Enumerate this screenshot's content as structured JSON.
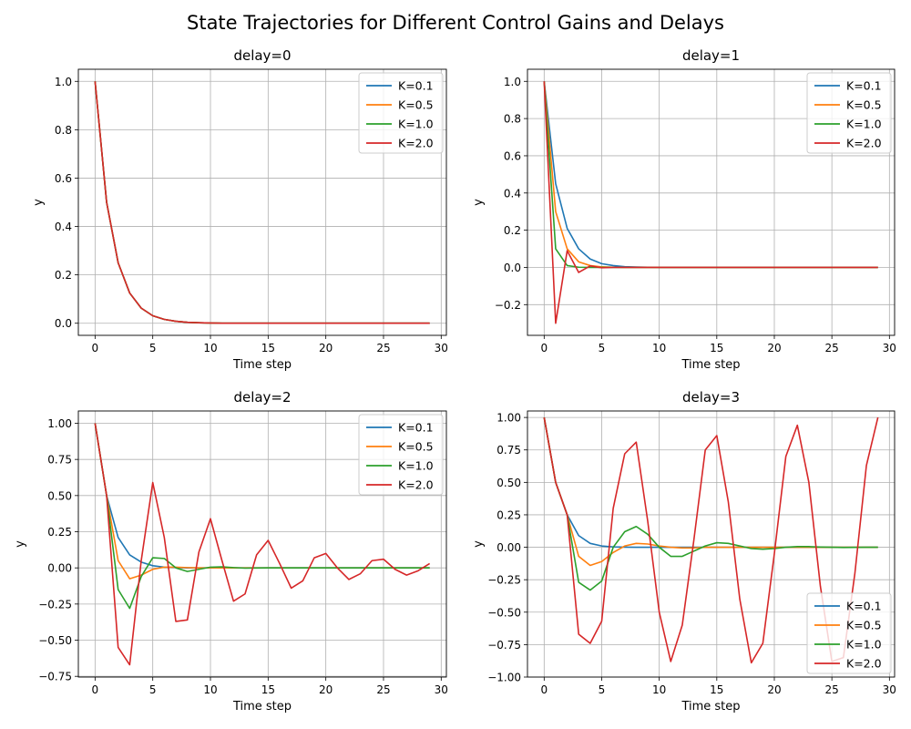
{
  "figure": {
    "title": "State Trajectories for Different Control Gains and Delays"
  },
  "chart_data": [
    {
      "type": "line",
      "title": "delay=0",
      "xlabel": "Time step",
      "ylabel": "y",
      "xlim": [
        -1.45,
        30.45
      ],
      "ylim": [
        -0.05,
        1.05
      ],
      "xticks": [
        0,
        5,
        10,
        15,
        20,
        25,
        30
      ],
      "yticks": [
        0.0,
        0.2,
        0.4,
        0.6,
        0.8,
        1.0
      ],
      "ytick_labels": [
        "0.0",
        "0.2",
        "0.4",
        "0.6",
        "0.8",
        "1.0"
      ],
      "grid": true,
      "legend_position": "top-right",
      "series": [
        {
          "name": "K=0.1",
          "color": "#1f77b4",
          "values": [
            1.0,
            0.5,
            0.25,
            0.125,
            0.0625,
            0.031,
            0.016,
            0.008,
            0.004,
            0.002,
            0.001,
            0.0,
            0.0,
            0.0,
            0.0,
            0.0,
            0.0,
            0.0,
            0.0,
            0.0,
            0.0,
            0.0,
            0.0,
            0.0,
            0.0,
            0.0,
            0.0,
            0.0,
            0.0,
            0.0
          ]
        },
        {
          "name": "K=0.5",
          "color": "#ff7f0e",
          "values": [
            1.0,
            0.5,
            0.25,
            0.125,
            0.0625,
            0.031,
            0.016,
            0.008,
            0.004,
            0.002,
            0.001,
            0.0,
            0.0,
            0.0,
            0.0,
            0.0,
            0.0,
            0.0,
            0.0,
            0.0,
            0.0,
            0.0,
            0.0,
            0.0,
            0.0,
            0.0,
            0.0,
            0.0,
            0.0,
            0.0
          ]
        },
        {
          "name": "K=1.0",
          "color": "#2ca02c",
          "values": [
            1.0,
            0.5,
            0.25,
            0.125,
            0.0625,
            0.031,
            0.016,
            0.008,
            0.004,
            0.002,
            0.001,
            0.0,
            0.0,
            0.0,
            0.0,
            0.0,
            0.0,
            0.0,
            0.0,
            0.0,
            0.0,
            0.0,
            0.0,
            0.0,
            0.0,
            0.0,
            0.0,
            0.0,
            0.0,
            0.0
          ]
        },
        {
          "name": "K=2.0",
          "color": "#d62728",
          "values": [
            1.0,
            0.5,
            0.25,
            0.125,
            0.0625,
            0.031,
            0.016,
            0.008,
            0.004,
            0.002,
            0.001,
            0.0,
            0.0,
            0.0,
            0.0,
            0.0,
            0.0,
            0.0,
            0.0,
            0.0,
            0.0,
            0.0,
            0.0,
            0.0,
            0.0,
            0.0,
            0.0,
            0.0,
            0.0,
            0.0
          ]
        }
      ]
    },
    {
      "type": "line",
      "title": "delay=1",
      "xlabel": "Time step",
      "ylabel": "y",
      "xlim": [
        -1.45,
        30.45
      ],
      "ylim": [
        -0.365,
        1.065
      ],
      "xticks": [
        0,
        5,
        10,
        15,
        20,
        25,
        30
      ],
      "yticks": [
        -0.2,
        0.0,
        0.2,
        0.4,
        0.6,
        0.8,
        1.0
      ],
      "ytick_labels": [
        "−0.2",
        "0.0",
        "0.2",
        "0.4",
        "0.6",
        "0.8",
        "1.0"
      ],
      "grid": true,
      "legend_position": "top-right",
      "series": [
        {
          "name": "K=0.1",
          "color": "#1f77b4",
          "values": [
            1.0,
            0.45,
            0.21,
            0.1,
            0.045,
            0.02,
            0.01,
            0.004,
            0.002,
            0.001,
            0.0,
            0.0,
            0.0,
            0.0,
            0.0,
            0.0,
            0.0,
            0.0,
            0.0,
            0.0,
            0.0,
            0.0,
            0.0,
            0.0,
            0.0,
            0.0,
            0.0,
            0.0,
            0.0,
            0.0
          ]
        },
        {
          "name": "K=0.5",
          "color": "#ff7f0e",
          "values": [
            1.0,
            0.3,
            0.1,
            0.03,
            0.01,
            0.003,
            0.001,
            0.0,
            0.0,
            0.0,
            0.0,
            0.0,
            0.0,
            0.0,
            0.0,
            0.0,
            0.0,
            0.0,
            0.0,
            0.0,
            0.0,
            0.0,
            0.0,
            0.0,
            0.0,
            0.0,
            0.0,
            0.0,
            0.0,
            0.0
          ]
        },
        {
          "name": "K=1.0",
          "color": "#2ca02c",
          "values": [
            1.0,
            0.1,
            0.01,
            0.001,
            0.0,
            0.0,
            0.0,
            0.0,
            0.0,
            0.0,
            0.0,
            0.0,
            0.0,
            0.0,
            0.0,
            0.0,
            0.0,
            0.0,
            0.0,
            0.0,
            0.0,
            0.0,
            0.0,
            0.0,
            0.0,
            0.0,
            0.0,
            0.0,
            0.0,
            0.0
          ]
        },
        {
          "name": "K=2.0",
          "color": "#d62728",
          "values": [
            1.0,
            -0.3,
            0.09,
            -0.027,
            0.008,
            -0.002,
            0.0,
            0.0,
            0.0,
            0.0,
            0.0,
            0.0,
            0.0,
            0.0,
            0.0,
            0.0,
            0.0,
            0.0,
            0.0,
            0.0,
            0.0,
            0.0,
            0.0,
            0.0,
            0.0,
            0.0,
            0.0,
            0.0,
            0.0,
            0.0
          ]
        }
      ]
    },
    {
      "type": "line",
      "title": "delay=2",
      "xlabel": "Time step",
      "ylabel": "y",
      "xlim": [
        -1.45,
        30.45
      ],
      "ylim": [
        -0.755,
        1.085
      ],
      "xticks": [
        0,
        5,
        10,
        15,
        20,
        25,
        30
      ],
      "yticks": [
        -0.75,
        -0.5,
        -0.25,
        0.0,
        0.25,
        0.5,
        0.75,
        1.0
      ],
      "ytick_labels": [
        "−0.75",
        "−0.50",
        "−0.25",
        "0.00",
        "0.25",
        "0.50",
        "0.75",
        "1.00"
      ],
      "grid": true,
      "legend_position": "top-right",
      "series": [
        {
          "name": "K=0.1",
          "color": "#1f77b4",
          "values": [
            1.0,
            0.5,
            0.21,
            0.09,
            0.04,
            0.015,
            0.005,
            0.002,
            0.0,
            0.0,
            0.0,
            0.0,
            0.0,
            0.0,
            0.0,
            0.0,
            0.0,
            0.0,
            0.0,
            0.0,
            0.0,
            0.0,
            0.0,
            0.0,
            0.0,
            0.0,
            0.0,
            0.0,
            0.0,
            0.0
          ]
        },
        {
          "name": "K=0.5",
          "color": "#ff7f0e",
          "values": [
            1.0,
            0.5,
            0.05,
            -0.075,
            -0.05,
            -0.01,
            0.005,
            0.005,
            0.002,
            0.0,
            0.0,
            0.0,
            0.0,
            0.0,
            0.0,
            0.0,
            0.0,
            0.0,
            0.0,
            0.0,
            0.0,
            0.0,
            0.0,
            0.0,
            0.0,
            0.0,
            0.0,
            0.0,
            0.0,
            0.0
          ]
        },
        {
          "name": "K=1.0",
          "color": "#2ca02c",
          "values": [
            1.0,
            0.5,
            -0.15,
            -0.28,
            -0.06,
            0.07,
            0.065,
            0.0,
            -0.025,
            -0.01,
            0.005,
            0.007,
            0.002,
            -0.002,
            -0.001,
            0.0,
            0.0,
            0.0,
            0.0,
            0.0,
            0.0,
            0.0,
            0.0,
            0.0,
            0.0,
            0.0,
            0.0,
            0.0,
            0.0,
            0.0
          ]
        },
        {
          "name": "K=2.0",
          "color": "#d62728",
          "values": [
            1.0,
            0.5,
            -0.55,
            -0.67,
            0.05,
            0.59,
            0.21,
            -0.37,
            -0.36,
            0.11,
            0.34,
            0.05,
            -0.23,
            -0.18,
            0.09,
            0.19,
            0.03,
            -0.14,
            -0.09,
            0.07,
            0.1,
            0.0,
            -0.08,
            -0.04,
            0.05,
            0.06,
            -0.01,
            -0.05,
            -0.02,
            0.03
          ]
        }
      ]
    },
    {
      "type": "line",
      "title": "delay=3",
      "xlabel": "Time step",
      "ylabel": "y",
      "xlim": [
        -1.45,
        30.45
      ],
      "ylim": [
        -1.0,
        1.05
      ],
      "xticks": [
        0,
        5,
        10,
        15,
        20,
        25,
        30
      ],
      "yticks": [
        -1.0,
        -0.75,
        -0.5,
        -0.25,
        0.0,
        0.25,
        0.5,
        0.75,
        1.0
      ],
      "ytick_labels": [
        "−1.00",
        "−0.75",
        "−0.50",
        "−0.25",
        "0.00",
        "0.25",
        "0.50",
        "0.75",
        "1.00"
      ],
      "grid": true,
      "legend_position": "bottom-right",
      "series": [
        {
          "name": "K=0.1",
          "color": "#1f77b4",
          "values": [
            1.0,
            0.5,
            0.25,
            0.09,
            0.03,
            0.01,
            0.003,
            0.001,
            0.0,
            0.0,
            0.0,
            0.0,
            0.0,
            0.0,
            0.0,
            0.0,
            0.0,
            0.0,
            0.0,
            0.0,
            0.0,
            0.0,
            0.0,
            0.0,
            0.0,
            0.0,
            0.0,
            0.0,
            0.0,
            0.0
          ]
        },
        {
          "name": "K=0.5",
          "color": "#ff7f0e",
          "values": [
            1.0,
            0.5,
            0.25,
            -0.07,
            -0.14,
            -0.11,
            -0.04,
            0.01,
            0.03,
            0.025,
            0.01,
            0.0,
            -0.005,
            -0.005,
            0.0,
            0.0,
            0.0,
            0.0,
            0.0,
            0.0,
            0.0,
            0.0,
            0.0,
            0.0,
            0.0,
            0.0,
            0.0,
            0.0,
            0.0,
            0.0
          ]
        },
        {
          "name": "K=1.0",
          "color": "#2ca02c",
          "values": [
            1.0,
            0.5,
            0.25,
            -0.27,
            -0.33,
            -0.26,
            0.0,
            0.12,
            0.16,
            0.1,
            0.0,
            -0.07,
            -0.07,
            -0.03,
            0.01,
            0.035,
            0.03,
            0.01,
            -0.01,
            -0.015,
            -0.01,
            0.0,
            0.005,
            0.005,
            0.002,
            0.0,
            -0.002,
            -0.001,
            0.0,
            0.0
          ]
        },
        {
          "name": "K=2.0",
          "color": "#d62728",
          "values": [
            1.0,
            0.5,
            0.25,
            -0.67,
            -0.74,
            -0.57,
            0.3,
            0.72,
            0.81,
            0.2,
            -0.5,
            -0.88,
            -0.6,
            0.05,
            0.75,
            0.86,
            0.35,
            -0.4,
            -0.89,
            -0.74,
            -0.05,
            0.7,
            0.94,
            0.5,
            -0.3,
            -0.88,
            -0.85,
            -0.2,
            0.63,
            1.0
          ]
        }
      ]
    }
  ]
}
